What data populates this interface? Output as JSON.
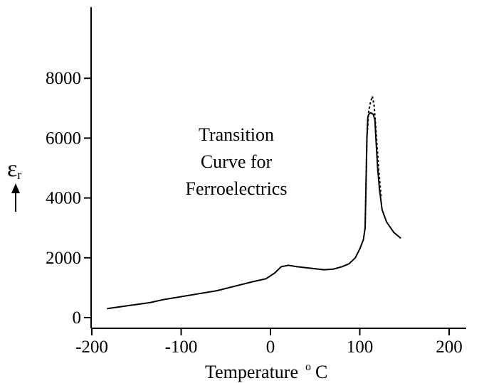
{
  "chart_data": {
    "type": "line",
    "title": "",
    "annotation": [
      "Transition",
      "Curve for",
      "Ferroelectrics"
    ],
    "xlabel": "Temperature",
    "xlabel_unit": "o C",
    "ylabel": "εr",
    "y_arrow": "↑",
    "xlim": [
      -200,
      200
    ],
    "ylim": [
      0,
      10000
    ],
    "x_ticks": [
      -200,
      -100,
      0,
      100,
      200
    ],
    "x_tick_labels": [
      "-200",
      "-100",
      "0",
      "100",
      "200"
    ],
    "y_ticks": [
      0,
      2000,
      4000,
      6000,
      8000
    ],
    "y_tick_labels": [
      "0",
      "2000",
      "4000",
      "6000",
      "8000"
    ],
    "grid": false,
    "series": [
      {
        "style": "solid",
        "x": [
          -183,
          -160,
          -135,
          -120,
          -100,
          -80,
          -60,
          -40,
          -20,
          -5,
          5,
          12,
          20,
          30,
          45,
          60,
          70,
          80,
          88,
          95,
          100,
          104,
          106,
          107,
          108,
          109,
          110,
          112,
          115,
          117,
          118,
          120,
          122,
          125,
          130,
          138,
          146
        ],
        "y": [
          300,
          400,
          500,
          600,
          700,
          800,
          900,
          1050,
          1200,
          1300,
          1500,
          1700,
          1750,
          1700,
          1650,
          1600,
          1620,
          1700,
          1800,
          2000,
          2300,
          2600,
          3000,
          4500,
          6000,
          6700,
          6800,
          6850,
          6800,
          6600,
          6000,
          5000,
          4300,
          3600,
          3200,
          2850,
          2650
        ]
      },
      {
        "style": "dashed",
        "x": [
          106,
          108,
          110,
          112,
          114,
          116,
          118,
          121,
          124
        ],
        "y": [
          3000,
          6000,
          6900,
          7200,
          7400,
          7100,
          6300,
          5000,
          4000
        ]
      }
    ]
  }
}
